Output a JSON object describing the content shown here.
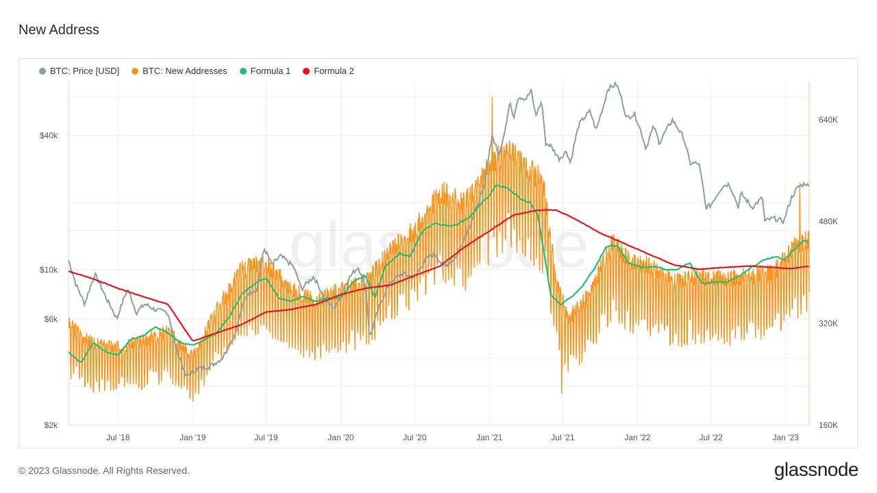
{
  "page": {
    "title": "New Address",
    "copyright": "© 2023 Glassnode. All Rights Reserved.",
    "logo_text": "glassnode",
    "watermark": "glassnode"
  },
  "chart_data": {
    "type": "line",
    "x_axis": {
      "type": "date",
      "range": [
        "2018-03-01",
        "2023-02-28"
      ],
      "tick_labels": [
        "Jul '18",
        "Jan '19",
        "Jul '19",
        "Jan '20",
        "Jul '20",
        "Jan '21",
        "Jul '21",
        "Jan '22",
        "Jul '22",
        "Jan '23"
      ],
      "tick_dates": [
        "2018-07-01",
        "2019-01-01",
        "2019-07-01",
        "2020-01-01",
        "2020-07-01",
        "2021-01-01",
        "2021-07-01",
        "2022-01-01",
        "2022-07-01",
        "2023-01-01"
      ]
    },
    "y_left": {
      "scale": "log",
      "range": [
        2000,
        70000
      ],
      "ticks": [
        2000,
        6000,
        10000,
        40000
      ],
      "tick_labels": [
        "$2k",
        "$6k",
        "$10k",
        "$40k"
      ]
    },
    "y_right": {
      "scale": "linear",
      "range": [
        160000,
        700000
      ],
      "ticks": [
        160000,
        320000,
        480000,
        640000
      ],
      "tick_labels": [
        "160K",
        "320K",
        "480K",
        "640K"
      ]
    },
    "grid": true,
    "legend_position": "top-left",
    "series": [
      {
        "name": "BTC: Price [USD]",
        "color": "#8d9ea2",
        "axis": "left",
        "style": "line",
        "points": [
          [
            "2018-03-01",
            11000
          ],
          [
            "2018-03-20",
            8500
          ],
          [
            "2018-04-10",
            7000
          ],
          [
            "2018-05-05",
            9500
          ],
          [
            "2018-06-01",
            7500
          ],
          [
            "2018-06-28",
            6000
          ],
          [
            "2018-07-25",
            8200
          ],
          [
            "2018-08-15",
            6400
          ],
          [
            "2018-09-05",
            7000
          ],
          [
            "2018-10-01",
            6600
          ],
          [
            "2018-11-01",
            6400
          ],
          [
            "2018-11-20",
            4500
          ],
          [
            "2018-12-15",
            3300
          ],
          [
            "2019-01-15",
            3600
          ],
          [
            "2019-02-15",
            3700
          ],
          [
            "2019-03-15",
            4000
          ],
          [
            "2019-04-15",
            5100
          ],
          [
            "2019-05-15",
            7800
          ],
          [
            "2019-06-10",
            8200
          ],
          [
            "2019-06-26",
            12500
          ],
          [
            "2019-07-15",
            10500
          ],
          [
            "2019-08-05",
            11500
          ],
          [
            "2019-09-05",
            10400
          ],
          [
            "2019-09-26",
            8200
          ],
          [
            "2019-10-26",
            9300
          ],
          [
            "2019-11-25",
            7200
          ],
          [
            "2019-12-18",
            6700
          ],
          [
            "2020-01-15",
            8800
          ],
          [
            "2020-02-12",
            10300
          ],
          [
            "2020-03-01",
            8700
          ],
          [
            "2020-03-12",
            4900
          ],
          [
            "2020-04-01",
            6500
          ],
          [
            "2020-05-01",
            8800
          ],
          [
            "2020-06-01",
            9600
          ],
          [
            "2020-07-01",
            9200
          ],
          [
            "2020-07-28",
            11100
          ],
          [
            "2020-08-20",
            11800
          ],
          [
            "2020-09-10",
            10300
          ],
          [
            "2020-10-10",
            11300
          ],
          [
            "2020-10-25",
            13000
          ],
          [
            "2020-11-15",
            16000
          ],
          [
            "2020-12-01",
            19000
          ],
          [
            "2020-12-20",
            23500
          ],
          [
            "2021-01-08",
            40000
          ],
          [
            "2021-01-25",
            32000
          ],
          [
            "2021-02-10",
            44000
          ],
          [
            "2021-02-21",
            57000
          ],
          [
            "2021-03-01",
            47000
          ],
          [
            "2021-03-13",
            60000
          ],
          [
            "2021-04-01",
            58500
          ],
          [
            "2021-04-14",
            63500
          ],
          [
            "2021-04-25",
            49000
          ],
          [
            "2021-05-10",
            57000
          ],
          [
            "2021-05-19",
            37000
          ],
          [
            "2021-06-01",
            36000
          ],
          [
            "2021-06-22",
            31500
          ],
          [
            "2021-07-10",
            34000
          ],
          [
            "2021-07-20",
            30000
          ],
          [
            "2021-08-10",
            45000
          ],
          [
            "2021-09-06",
            51500
          ],
          [
            "2021-09-21",
            42000
          ],
          [
            "2021-10-10",
            55000
          ],
          [
            "2021-10-20",
            65000
          ],
          [
            "2021-11-10",
            68000
          ],
          [
            "2021-11-25",
            57000
          ],
          [
            "2021-12-04",
            48000
          ],
          [
            "2021-12-25",
            50000
          ],
          [
            "2022-01-22",
            35000
          ],
          [
            "2022-02-10",
            44000
          ],
          [
            "2022-02-24",
            37000
          ],
          [
            "2022-03-28",
            47000
          ],
          [
            "2022-04-25",
            39000
          ],
          [
            "2022-05-10",
            30000
          ],
          [
            "2022-06-01",
            30000
          ],
          [
            "2022-06-18",
            19000
          ],
          [
            "2022-07-01",
            19500
          ],
          [
            "2022-07-30",
            23800
          ],
          [
            "2022-08-15",
            24200
          ],
          [
            "2022-09-07",
            19000
          ],
          [
            "2022-09-13",
            22000
          ],
          [
            "2022-10-10",
            19000
          ],
          [
            "2022-11-05",
            21000
          ],
          [
            "2022-11-10",
            16500
          ],
          [
            "2022-12-01",
            17000
          ],
          [
            "2022-12-28",
            16500
          ],
          [
            "2023-01-15",
            21000
          ],
          [
            "2023-02-01",
            23500
          ],
          [
            "2023-02-20",
            24500
          ],
          [
            "2023-02-28",
            23300
          ]
        ]
      },
      {
        "name": "BTC: New Addresses",
        "color": "#f7931a",
        "axis": "right",
        "style": "oscillating",
        "points": [
          [
            "2018-03-01",
            300000
          ],
          [
            "2018-05-01",
            270000
          ],
          [
            "2018-07-01",
            265000
          ],
          [
            "2018-09-01",
            275000
          ],
          [
            "2018-11-01",
            290000
          ],
          [
            "2019-01-01",
            250000
          ],
          [
            "2019-03-01",
            320000
          ],
          [
            "2019-05-01",
            380000
          ],
          [
            "2019-07-01",
            390000
          ],
          [
            "2019-09-01",
            350000
          ],
          [
            "2019-11-01",
            335000
          ],
          [
            "2020-01-01",
            350000
          ],
          [
            "2020-03-01",
            360000
          ],
          [
            "2020-05-01",
            405000
          ],
          [
            "2020-07-01",
            440000
          ],
          [
            "2020-09-01",
            495000
          ],
          [
            "2020-11-01",
            475000
          ],
          [
            "2021-01-01",
            530000
          ],
          [
            "2021-02-10",
            555000
          ],
          [
            "2021-04-01",
            535000
          ],
          [
            "2021-05-15",
            505000
          ],
          [
            "2021-06-15",
            360000
          ],
          [
            "2021-07-15",
            310000
          ],
          [
            "2021-09-01",
            340000
          ],
          [
            "2021-11-01",
            420000
          ],
          [
            "2021-12-15",
            390000
          ],
          [
            "2022-02-01",
            385000
          ],
          [
            "2022-04-01",
            360000
          ],
          [
            "2022-06-01",
            370000
          ],
          [
            "2022-08-01",
            365000
          ],
          [
            "2022-10-01",
            370000
          ],
          [
            "2022-12-01",
            375000
          ],
          [
            "2023-01-15",
            410000
          ],
          [
            "2023-02-28",
            425000
          ]
        ],
        "notable_values": [
          [
            "2021-01-08",
            675000
          ],
          [
            "2021-06-28",
            210000
          ],
          [
            "2023-02-05",
            540000
          ]
        ]
      },
      {
        "name": "Formula 1",
        "color": "#1dbf73",
        "axis": "right",
        "style": "line",
        "points": [
          [
            "2018-03-01",
            275000
          ],
          [
            "2018-04-01",
            258000
          ],
          [
            "2018-05-01",
            290000
          ],
          [
            "2018-06-01",
            275000
          ],
          [
            "2018-07-01",
            270000
          ],
          [
            "2018-08-01",
            295000
          ],
          [
            "2018-09-01",
            300000
          ],
          [
            "2018-10-01",
            315000
          ],
          [
            "2018-11-01",
            305000
          ],
          [
            "2018-12-01",
            290000
          ],
          [
            "2019-01-01",
            285000
          ],
          [
            "2019-02-01",
            295000
          ],
          [
            "2019-03-01",
            305000
          ],
          [
            "2019-04-01",
            330000
          ],
          [
            "2019-05-01",
            365000
          ],
          [
            "2019-06-01",
            382000
          ],
          [
            "2019-07-01",
            392000
          ],
          [
            "2019-08-01",
            360000
          ],
          [
            "2019-09-01",
            355000
          ],
          [
            "2019-10-01",
            362000
          ],
          [
            "2019-11-01",
            355000
          ],
          [
            "2019-12-01",
            360000
          ],
          [
            "2020-01-01",
            360000
          ],
          [
            "2020-02-01",
            385000
          ],
          [
            "2020-03-01",
            395000
          ],
          [
            "2020-03-25",
            360000
          ],
          [
            "2020-04-20",
            410000
          ],
          [
            "2020-05-25",
            430000
          ],
          [
            "2020-06-20",
            425000
          ],
          [
            "2020-07-20",
            465000
          ],
          [
            "2020-08-20",
            478000
          ],
          [
            "2020-09-20",
            473000
          ],
          [
            "2020-10-15",
            476000
          ],
          [
            "2020-11-15",
            488000
          ],
          [
            "2020-12-15",
            510000
          ],
          [
            "2021-01-01",
            522000
          ],
          [
            "2021-01-20",
            538000
          ],
          [
            "2021-02-20",
            530000
          ],
          [
            "2021-03-20",
            515000
          ],
          [
            "2021-04-10",
            510000
          ],
          [
            "2021-05-01",
            490000
          ],
          [
            "2021-06-01",
            365000
          ],
          [
            "2021-06-25",
            350000
          ],
          [
            "2021-07-20",
            360000
          ],
          [
            "2021-08-20",
            380000
          ],
          [
            "2021-09-20",
            410000
          ],
          [
            "2021-10-15",
            440000
          ],
          [
            "2021-11-10",
            443000
          ],
          [
            "2021-12-10",
            415000
          ],
          [
            "2022-01-10",
            408000
          ],
          [
            "2022-02-10",
            410000
          ],
          [
            "2022-03-10",
            405000
          ],
          [
            "2022-04-10",
            405000
          ],
          [
            "2022-05-10",
            415000
          ],
          [
            "2022-06-10",
            382000
          ],
          [
            "2022-07-10",
            385000
          ],
          [
            "2022-08-10",
            385000
          ],
          [
            "2022-09-10",
            395000
          ],
          [
            "2022-10-10",
            408000
          ],
          [
            "2022-11-10",
            420000
          ],
          [
            "2022-12-10",
            425000
          ],
          [
            "2022-12-28",
            420000
          ],
          [
            "2023-01-25",
            438000
          ],
          [
            "2023-02-15",
            450000
          ],
          [
            "2023-02-28",
            448000
          ]
        ]
      },
      {
        "name": "Formula 2",
        "color": "#e3121b",
        "axis": "right",
        "style": "line",
        "points": [
          [
            "2018-03-01",
            402000
          ],
          [
            "2018-05-01",
            390000
          ],
          [
            "2018-07-01",
            375000
          ],
          [
            "2018-09-01",
            362000
          ],
          [
            "2018-11-01",
            350000
          ],
          [
            "2019-01-01",
            292000
          ],
          [
            "2019-03-01",
            305000
          ],
          [
            "2019-05-01",
            318000
          ],
          [
            "2019-07-01",
            338000
          ],
          [
            "2019-09-01",
            342000
          ],
          [
            "2019-11-01",
            350000
          ],
          [
            "2020-01-01",
            365000
          ],
          [
            "2020-03-01",
            375000
          ],
          [
            "2020-05-01",
            380000
          ],
          [
            "2020-07-01",
            395000
          ],
          [
            "2020-09-01",
            410000
          ],
          [
            "2020-11-01",
            440000
          ],
          [
            "2021-01-01",
            465000
          ],
          [
            "2021-03-01",
            490000
          ],
          [
            "2021-05-01",
            498000
          ],
          [
            "2021-06-15",
            498000
          ],
          [
            "2021-08-01",
            484000
          ],
          [
            "2021-10-01",
            462000
          ],
          [
            "2021-12-01",
            445000
          ],
          [
            "2022-02-01",
            428000
          ],
          [
            "2022-04-01",
            412000
          ],
          [
            "2022-06-01",
            405000
          ],
          [
            "2022-08-01",
            408000
          ],
          [
            "2022-10-01",
            410000
          ],
          [
            "2022-12-01",
            408000
          ],
          [
            "2023-01-15",
            406000
          ],
          [
            "2023-02-28",
            410000
          ]
        ]
      }
    ]
  }
}
